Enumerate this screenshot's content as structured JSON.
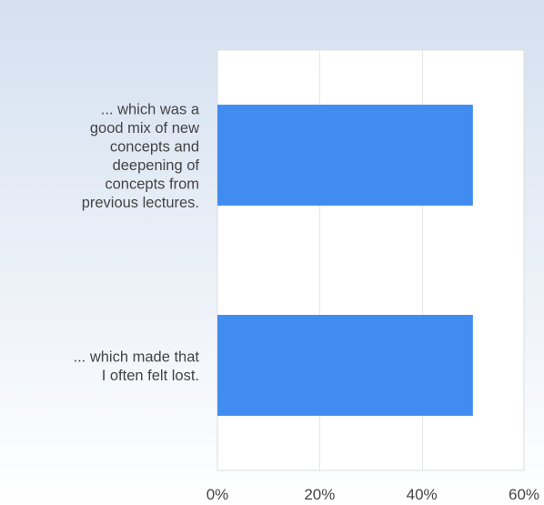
{
  "chart_data": {
    "type": "bar",
    "orientation": "horizontal",
    "categories": [
      "... which was a good mix of new concepts and deepening of concepts from previous lectures.",
      "... which made that I often felt lost."
    ],
    "category_lines": [
      [
        "... which was a",
        "good mix of new",
        "concepts and",
        "deepening of",
        "concepts from",
        "previous lectures."
      ],
      [
        "... which made that",
        "I often felt lost."
      ]
    ],
    "values": [
      50,
      50
    ],
    "xlim": [
      0,
      60
    ],
    "xticks": [
      0,
      20,
      40,
      60
    ],
    "xtick_labels": [
      "0%",
      "20%",
      "40%",
      "60%"
    ],
    "title": "",
    "xlabel": "",
    "ylabel": "",
    "grid": true,
    "legend": "none",
    "bar_color": "#418cf0",
    "plot_background": "#ffffff",
    "plot_border_color": "#dddddd",
    "grid_color": "#e6e6e6"
  }
}
